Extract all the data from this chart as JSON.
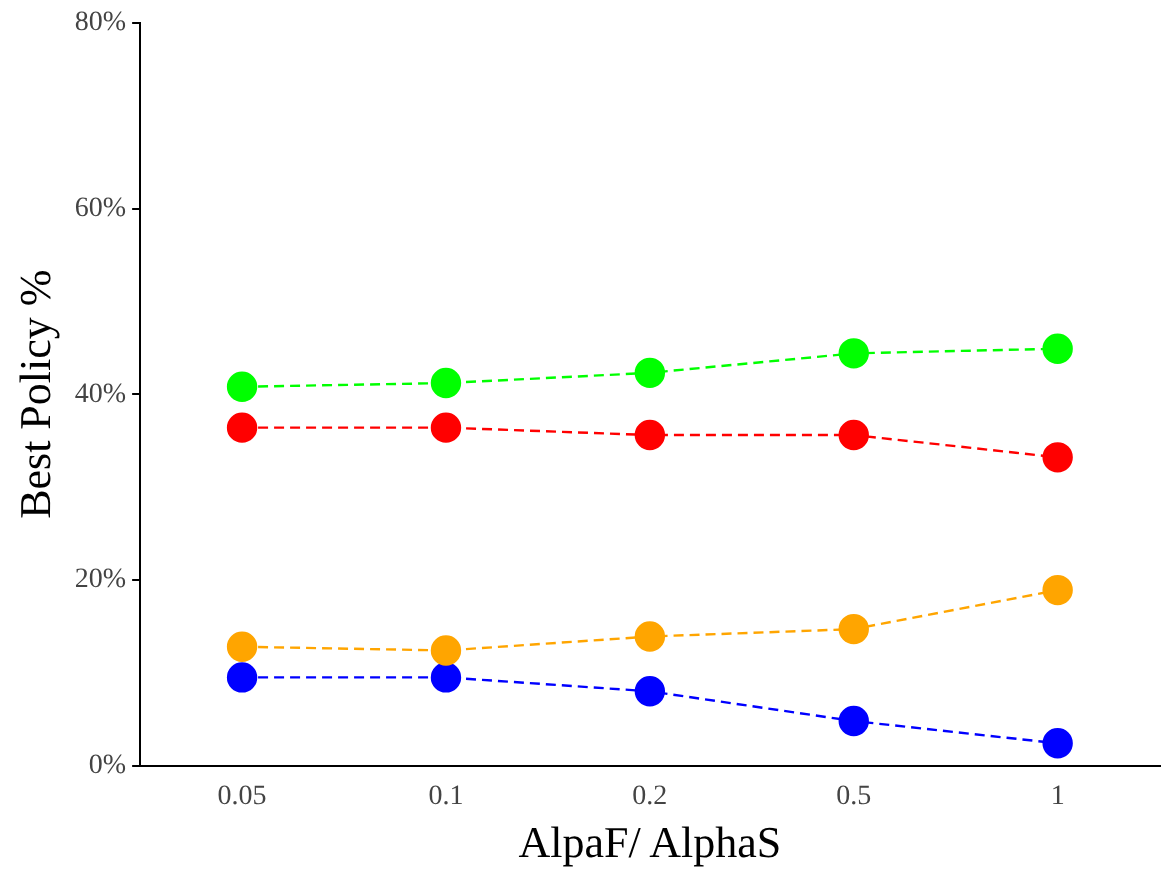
{
  "chart_data": {
    "type": "line",
    "xlabel": "AlpaF/ AlphaS",
    "ylabel": "Best Policy %",
    "categories": [
      "0.05",
      "0.1",
      "0.2",
      "0.5",
      "1"
    ],
    "series": [
      {
        "color": "#00ff00",
        "values": [
          40.8,
          41.2,
          42.3,
          44.4,
          44.9
        ]
      },
      {
        "color": "#ff0000",
        "values": [
          36.4,
          36.4,
          35.6,
          35.6,
          33.2
        ]
      },
      {
        "color": "#ffa500",
        "values": [
          12.8,
          12.4,
          13.9,
          14.7,
          18.9
        ]
      },
      {
        "color": "#0000ff",
        "values": [
          9.5,
          9.5,
          8.0,
          4.8,
          2.4
        ]
      }
    ],
    "ylim": [
      0,
      80
    ],
    "yticks": [
      {
        "value": 0,
        "label": "0%"
      },
      {
        "value": 20,
        "label": "20%"
      },
      {
        "value": 40,
        "label": "40%"
      },
      {
        "value": 60,
        "label": "60%"
      },
      {
        "value": 80,
        "label": "80%"
      }
    ],
    "grid": false,
    "legend": false,
    "marker": "circle",
    "line_style": "dashed"
  }
}
